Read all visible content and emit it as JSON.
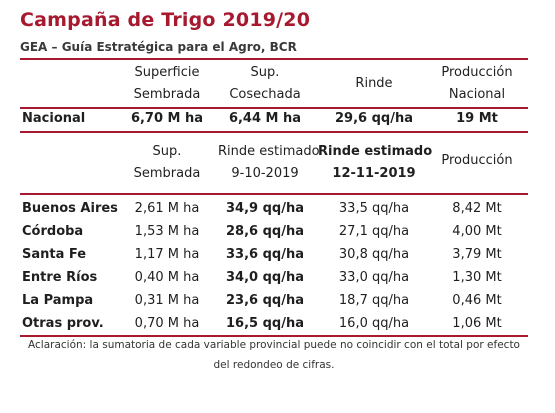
{
  "title": "Campaña de Trigo 2019/20",
  "subtitle": "GEA – Guía Estratégica para el Agro, BCR",
  "national_header": {
    "col1": [
      "Superficie",
      "Sembrada"
    ],
    "col2": [
      "Sup.",
      "Cosechada"
    ],
    "col3": "Rinde",
    "col4": [
      "Producción",
      "Nacional"
    ]
  },
  "national_row": {
    "label": "Nacional",
    "sown": "6,70 M ha",
    "harvested": "6,44 M ha",
    "yield": "29,6 qq/ha",
    "production": "19 Mt"
  },
  "province_header": {
    "col1": [
      "Sup.",
      "Sembrada"
    ],
    "col2": [
      "Rinde estimado",
      "9-10-2019"
    ],
    "col3": [
      "Rinde estimado",
      "12-11-2019"
    ],
    "col4": "Producción"
  },
  "provinces": [
    {
      "name": "Buenos Aires",
      "sown": "2,61 M ha",
      "yield_oct": "34,9 qq/ha",
      "yield_nov": "33,5 qq/ha",
      "production": "8,42 Mt"
    },
    {
      "name": "Córdoba",
      "sown": "1,53 M ha",
      "yield_oct": "28,6 qq/ha",
      "yield_nov": "27,1 qq/ha",
      "production": "4,00 Mt"
    },
    {
      "name": "Santa Fe",
      "sown": "1,17 M ha",
      "yield_oct": "33,6 qq/ha",
      "yield_nov": "30,8 qq/ha",
      "production": "3,79 Mt"
    },
    {
      "name": "Entre Ríos",
      "sown": "0,40 M ha",
      "yield_oct": "34,0 qq/ha",
      "yield_nov": "33,0 qq/ha",
      "production": "1,30 Mt"
    },
    {
      "name": "La Pampa",
      "sown": "0,31 M ha",
      "yield_oct": "23,6 qq/ha",
      "yield_nov": "18,7 qq/ha",
      "production": "0,46 Mt"
    },
    {
      "name": "Otras prov.",
      "sown": "0,70 M ha",
      "yield_oct": "16,5 qq/ha",
      "yield_nov": "16,0 qq/ha",
      "production": "1,06 Mt"
    }
  ],
  "note": "Aclaración: la sumatoria de cada variable provincial puede no coincidir con el total por efecto del redondeo de cifras.",
  "colors": {
    "accent": "#a6192e"
  }
}
